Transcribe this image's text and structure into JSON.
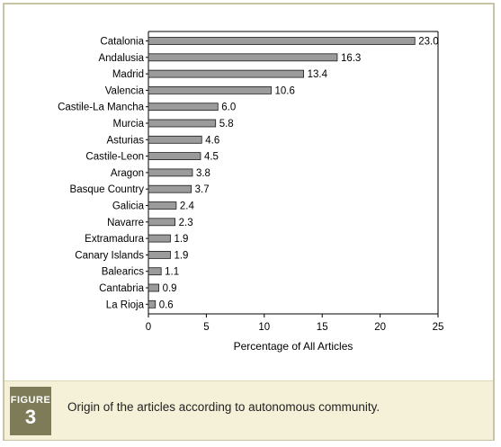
{
  "figure": {
    "label": "FIGURE",
    "number": "3",
    "caption": "Origin of the articles according to autonomous community."
  },
  "colors": {
    "bar_fill": "#9b9b9b",
    "bar_stroke": "#1a1a1a",
    "frame": "#c7c3a3",
    "caption_band": "#f4f1d8",
    "badge": "#7e7c58"
  },
  "chart_data": {
    "type": "bar",
    "orientation": "horizontal",
    "categories": [
      "Catalonia",
      "Andalusia",
      "Madrid",
      "Valencia",
      "Castile-La Mancha",
      "Murcia",
      "Asturias",
      "Castile-Leon",
      "Aragon",
      "Basque Country",
      "Galicia",
      "Navarre",
      "Extramadura",
      "Canary Islands",
      "Balearics",
      "Cantabria",
      "La Rioja"
    ],
    "values": [
      23.0,
      16.3,
      13.4,
      10.6,
      6.0,
      5.8,
      4.6,
      4.5,
      3.8,
      3.7,
      2.4,
      2.3,
      1.9,
      1.9,
      1.1,
      0.9,
      0.6
    ],
    "value_labels": [
      "23.0",
      "16.3",
      "13.4",
      "10.6",
      "6.0",
      "5.8",
      "4.6",
      "4.5",
      "3.8",
      "3.7",
      "2.4",
      "2.3",
      "1.9",
      "1.9",
      "1.1",
      "0.9",
      "0.6"
    ],
    "xlabel": "Percentage of All Articles",
    "ylabel": "",
    "xlim": [
      0,
      25
    ],
    "xticks": [
      "0",
      "5",
      "10",
      "15",
      "20",
      "25"
    ],
    "grid": false
  }
}
